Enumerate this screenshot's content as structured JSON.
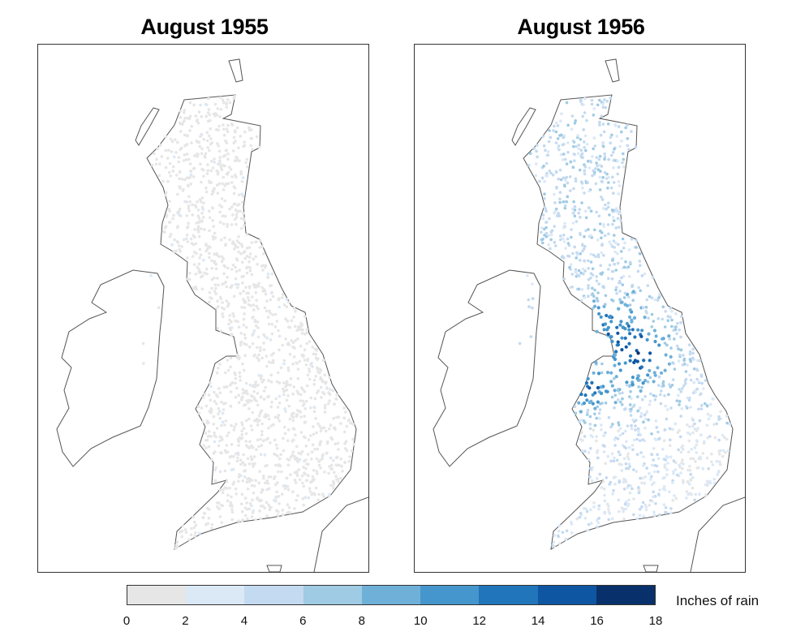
{
  "panels": [
    {
      "title": "August 1955"
    },
    {
      "title": "August 1956"
    }
  ],
  "legend": {
    "label": "Inches of rain",
    "ticks": [
      "0",
      "2",
      "4",
      "6",
      "8",
      "10",
      "12",
      "14",
      "16",
      "18"
    ],
    "colors": [
      "#e6e6e6",
      "#dbe8f6",
      "#c4daf0",
      "#9fcbe4",
      "#6fb0d9",
      "#4596cc",
      "#2175ba",
      "#0e56a2",
      "#08306b"
    ],
    "bins_inches": [
      [
        0,
        2
      ],
      [
        2,
        4
      ],
      [
        4,
        6
      ],
      [
        6,
        8
      ],
      [
        8,
        10
      ],
      [
        10,
        12
      ],
      [
        12,
        14
      ],
      [
        14,
        16
      ],
      [
        16,
        18
      ]
    ]
  },
  "map": {
    "region": "Great Britain and Ireland",
    "coastline_color": "#555555",
    "station_points": "rain-gauge stations shown as colored dots"
  }
}
